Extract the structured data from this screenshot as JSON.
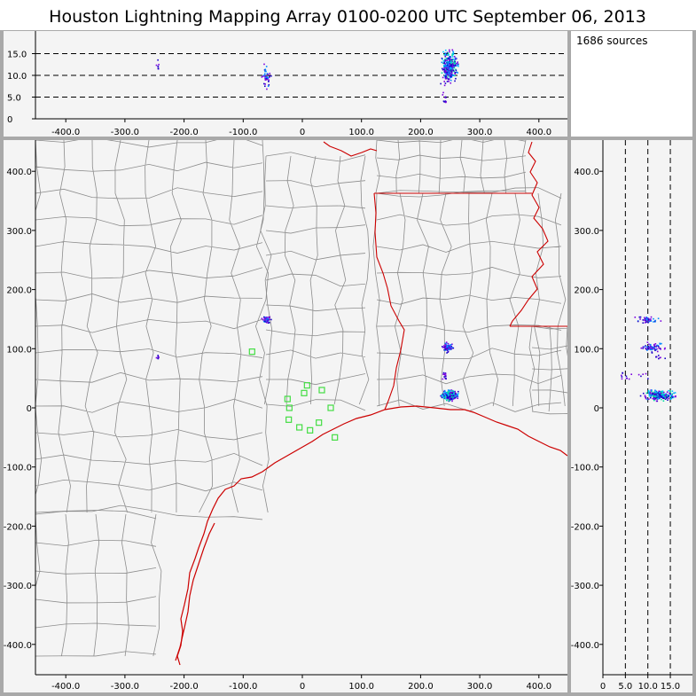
{
  "title": "Houston Lightning Mapping Array   0100-0200 UTC  September 06, 2013",
  "source_count": "1686 sources",
  "colors": {
    "frame": "#a9a9a9",
    "plot_bg": "#f4f4f4",
    "county_lines": "#8c8c8c",
    "coast_state_lines": "#cc0000",
    "stations": "#44dd44",
    "sources": [
      "#1a00c8",
      "#7a00e0",
      "#0088ff",
      "#00c8ff",
      "#00e0a0"
    ]
  },
  "plan_view": {
    "x_ticks": [
      "-400.0",
      "-300.0",
      "-200.0",
      "-100.0",
      "0",
      "100.0",
      "200.0",
      "300.0",
      "400.0"
    ],
    "y_ticks": [
      "400.0",
      "300.0",
      "200.0",
      "100.0",
      "0",
      "-100.0",
      "-200.0",
      "-300.0",
      "-400.0"
    ],
    "x_range_km": [
      -450,
      450
    ],
    "y_range_km": [
      -450,
      450
    ]
  },
  "alt_vs_x": {
    "alt_ticks": [
      "15.0",
      "10.0",
      "5.0",
      "0"
    ],
    "alt_dashed_km": [
      5,
      10,
      15
    ],
    "alt_range_km": [
      0,
      20
    ]
  },
  "alt_vs_y": {
    "alt_ticks": [
      "0",
      "5.0",
      "10.0",
      "15.0"
    ],
    "alt_dashed_km": [
      5,
      10,
      15
    ]
  },
  "stations_km": [
    [
      -85,
      95
    ],
    [
      -25,
      15
    ],
    [
      -23,
      -20
    ],
    [
      -22,
      0
    ],
    [
      -5,
      -33
    ],
    [
      3,
      25
    ],
    [
      8,
      38
    ],
    [
      13,
      -38
    ],
    [
      28,
      -25
    ],
    [
      33,
      30
    ],
    [
      48,
      0
    ],
    [
      55,
      -50
    ]
  ],
  "source_clusters_km": [
    {
      "x": 248,
      "y": 22,
      "spread": [
        10,
        6
      ],
      "alt": 12.5,
      "alt_spread": 2.5,
      "n": 260,
      "palette": "dense"
    },
    {
      "x": 245,
      "y": 103,
      "spread": [
        6,
        6
      ],
      "alt": 11,
      "alt_spread": 2,
      "n": 70,
      "palette": "medium"
    },
    {
      "x": -62,
      "y": 150,
      "spread": [
        5,
        4
      ],
      "alt": 10,
      "alt_spread": 2,
      "n": 45,
      "palette": "medium"
    },
    {
      "x": -245,
      "y": 87,
      "spread": [
        3,
        3
      ],
      "alt": 12.5,
      "alt_spread": 1.5,
      "n": 8,
      "palette": "sparse"
    },
    {
      "x": 240,
      "y": 55,
      "spread": [
        3,
        6
      ],
      "alt": 6,
      "alt_spread": 3,
      "n": 15,
      "palette": "sparse"
    }
  ]
}
